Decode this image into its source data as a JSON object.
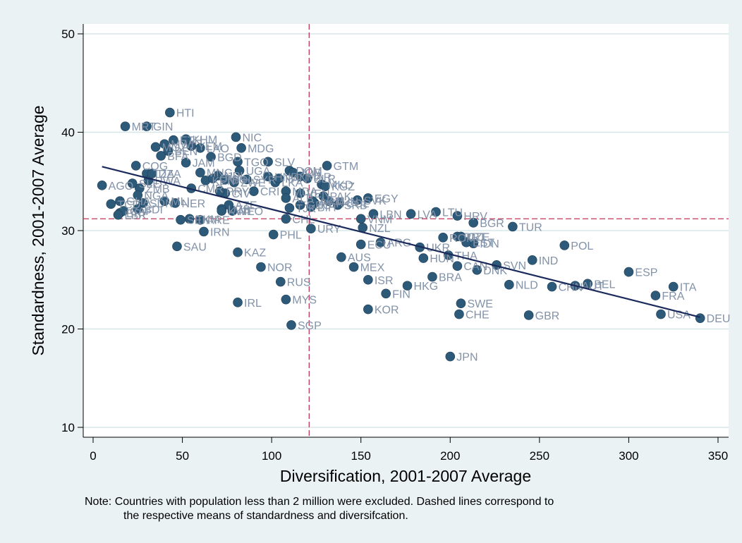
{
  "chart_data": {
    "type": "scatter",
    "title": "",
    "xlabel": "Diversification, 2001-2007 Average",
    "ylabel": "Standardness, 2001-2007 Average",
    "xlim": [
      0,
      350
    ],
    "ylim": [
      10,
      50
    ],
    "xticks": [
      0,
      50,
      100,
      150,
      200,
      250,
      300,
      350
    ],
    "yticks": [
      10,
      20,
      30,
      40,
      50
    ],
    "grid": "horizontal",
    "mean_lines": {
      "x": 121,
      "y": 31.2
    },
    "fit_line": {
      "x": [
        5,
        340
      ],
      "y": [
        36.5,
        21.2
      ]
    },
    "colors": {
      "marker": "#2e5a7a",
      "fit_line": "#1a2a5a",
      "mean_line": "#c0365a",
      "label": "#8292a8",
      "plot_bg": "#ffffff",
      "outer_bg": "#eaf2f3"
    },
    "points": [
      {
        "label": "HTI",
        "x": 43,
        "y": 42.0
      },
      {
        "label": "MRT",
        "x": 18,
        "y": 40.6
      },
      {
        "label": "GIN",
        "x": 30,
        "y": 40.6
      },
      {
        "label": "NIC",
        "x": 80,
        "y": 39.5
      },
      {
        "label": "KHM",
        "x": 52,
        "y": 39.3
      },
      {
        "label": "MDG",
        "x": 83,
        "y": 38.4
      },
      {
        "label": "LAO",
        "x": 60,
        "y": 38.4
      },
      {
        "label": "BEN",
        "x": 42,
        "y": 38.1
      },
      {
        "label": "BGD",
        "x": 66,
        "y": 37.5
      },
      {
        "label": "TGO",
        "x": 81,
        "y": 37.0
      },
      {
        "label": "SLV",
        "x": 98,
        "y": 37.0
      },
      {
        "label": "JAM",
        "x": 52,
        "y": 36.9
      },
      {
        "label": "COG",
        "x": 24,
        "y": 36.6
      },
      {
        "label": "GTM",
        "x": 131,
        "y": 36.6
      },
      {
        "label": "UGA",
        "x": 82,
        "y": 36.1
      },
      {
        "label": "DOM",
        "x": 110,
        "y": 36.1
      },
      {
        "label": "MNG",
        "x": 60,
        "y": 35.9
      },
      {
        "label": "BOL",
        "x": 74,
        "y": 35.2
      },
      {
        "label": "AGO",
        "x": 5,
        "y": 34.6
      },
      {
        "label": "MKD",
        "x": 128,
        "y": 34.7
      },
      {
        "label": "ZMB",
        "x": 26,
        "y": 34.3
      },
      {
        "label": "MDA",
        "x": 108,
        "y": 34.0
      },
      {
        "label": "PAK",
        "x": 129,
        "y": 33.5
      },
      {
        "label": "EGY",
        "x": 154,
        "y": 33.3
      },
      {
        "label": "NER",
        "x": 46,
        "y": 32.8
      },
      {
        "label": "COL",
        "x": 138,
        "y": 32.8
      },
      {
        "label": "CIV",
        "x": 74,
        "y": 33.8
      },
      {
        "label": "LBN",
        "x": 157,
        "y": 31.7
      },
      {
        "label": "LVA",
        "x": 178,
        "y": 31.7
      },
      {
        "label": "LTU",
        "x": 192,
        "y": 31.9
      },
      {
        "label": "HRV",
        "x": 204,
        "y": 31.5
      },
      {
        "label": "BGR",
        "x": 213,
        "y": 30.8
      },
      {
        "label": "TUR",
        "x": 235,
        "y": 30.4
      },
      {
        "label": "ERI",
        "x": 15,
        "y": 31.8
      },
      {
        "label": "SEN",
        "x": 49,
        "y": 31.1
      },
      {
        "label": "ARE",
        "x": 60,
        "y": 31.1
      },
      {
        "label": "NEO",
        "x": 78,
        "y": 32.0
      },
      {
        "label": "CHL",
        "x": 108,
        "y": 31.2
      },
      {
        "label": "URY",
        "x": 122,
        "y": 30.2
      },
      {
        "label": "IRN",
        "x": 62,
        "y": 29.9
      },
      {
        "label": "PHL",
        "x": 101,
        "y": 29.6
      },
      {
        "label": "VNM",
        "x": 150,
        "y": 31.2
      },
      {
        "label": "NZL",
        "x": 151,
        "y": 30.3
      },
      {
        "label": "ARG",
        "x": 161,
        "y": 28.8
      },
      {
        "label": "ECU",
        "x": 150,
        "y": 28.6
      },
      {
        "label": "UKR",
        "x": 183,
        "y": 28.3
      },
      {
        "label": "PRT",
        "x": 204,
        "y": 29.4
      },
      {
        "label": "ROM",
        "x": 196,
        "y": 29.3
      },
      {
        "label": "IDN",
        "x": 213,
        "y": 28.7
      },
      {
        "label": "POL",
        "x": 264,
        "y": 28.5
      },
      {
        "label": "THA",
        "x": 199,
        "y": 27.5
      },
      {
        "label": "HUN",
        "x": 185,
        "y": 27.2
      },
      {
        "label": "SAU",
        "x": 47,
        "y": 28.4
      },
      {
        "label": "KAZ",
        "x": 81,
        "y": 27.8
      },
      {
        "label": "AUS",
        "x": 139,
        "y": 27.3
      },
      {
        "label": "IND",
        "x": 246,
        "y": 27.0
      },
      {
        "label": "SVN",
        "x": 226,
        "y": 26.5
      },
      {
        "label": "CAN",
        "x": 204,
        "y": 26.4
      },
      {
        "label": "DNK",
        "x": 215,
        "y": 26.0
      },
      {
        "label": "MEX",
        "x": 146,
        "y": 26.3
      },
      {
        "label": "NOR",
        "x": 94,
        "y": 26.3
      },
      {
        "label": "ESP",
        "x": 300,
        "y": 25.8
      },
      {
        "label": "BRA",
        "x": 190,
        "y": 25.3
      },
      {
        "label": "ISR",
        "x": 154,
        "y": 25.0
      },
      {
        "label": "RUS",
        "x": 105,
        "y": 24.8
      },
      {
        "label": "HKG",
        "x": 176,
        "y": 24.4
      },
      {
        "label": "NLD",
        "x": 233,
        "y": 24.5
      },
      {
        "label": "BEL",
        "x": 277,
        "y": 24.6
      },
      {
        "label": "CHN",
        "x": 257,
        "y": 24.3
      },
      {
        "label": "AUT",
        "x": 270,
        "y": 24.4
      },
      {
        "label": "ITA",
        "x": 325,
        "y": 24.3
      },
      {
        "label": "FRA",
        "x": 315,
        "y": 23.4
      },
      {
        "label": "FIN",
        "x": 164,
        "y": 23.6
      },
      {
        "label": "MYS",
        "x": 108,
        "y": 23.0
      },
      {
        "label": "IRL",
        "x": 81,
        "y": 22.7
      },
      {
        "label": "SWE",
        "x": 206,
        "y": 22.6
      },
      {
        "label": "KOR",
        "x": 154,
        "y": 22.0
      },
      {
        "label": "CHE",
        "x": 205,
        "y": 21.5
      },
      {
        "label": "GBR",
        "x": 244,
        "y": 21.4
      },
      {
        "label": "USA",
        "x": 318,
        "y": 21.5
      },
      {
        "label": "DEU",
        "x": 340,
        "y": 21.1
      },
      {
        "label": "SGP",
        "x": 111,
        "y": 20.4
      },
      {
        "label": "JPN",
        "x": 200,
        "y": 17.2
      },
      {
        "label": "GHA",
        "x": 15,
        "y": 33.0
      },
      {
        "label": "TZA",
        "x": 30,
        "y": 35.8
      },
      {
        "label": "MLI",
        "x": 40,
        "y": 33.0
      },
      {
        "label": "SDN",
        "x": 28,
        "y": 32.8
      },
      {
        "label": "TCD",
        "x": 10,
        "y": 32.7
      },
      {
        "label": "CMR",
        "x": 55,
        "y": 34.3
      },
      {
        "label": "KEN",
        "x": 63,
        "y": 35.1
      },
      {
        "label": "PRY",
        "x": 71,
        "y": 34.0
      },
      {
        "label": "HND",
        "x": 98,
        "y": 35.5
      },
      {
        "label": "VEN",
        "x": 116,
        "y": 33.8
      },
      {
        "label": "GEO",
        "x": 116,
        "y": 32.6
      },
      {
        "label": "PER",
        "x": 124,
        "y": 32.8
      },
      {
        "label": "TUN",
        "x": 132,
        "y": 33.0
      },
      {
        "label": "CRI",
        "x": 90,
        "y": 34.0
      },
      {
        "label": "BLR",
        "x": 120,
        "y": 35.3
      },
      {
        "label": "SYR",
        "x": 86,
        "y": 35.2
      },
      {
        "label": "MOZ",
        "x": 35,
        "y": 38.5
      },
      {
        "label": "MWI",
        "x": 40,
        "y": 38.8
      },
      {
        "label": "ETH",
        "x": 45,
        "y": 39.2
      },
      {
        "label": "YEM",
        "x": 55,
        "y": 38.6
      },
      {
        "label": "BFA",
        "x": 38,
        "y": 37.6
      },
      {
        "label": "NPL",
        "x": 70,
        "y": 35.6
      },
      {
        "label": "ZWE",
        "x": 79,
        "y": 34.9
      },
      {
        "label": "LKA",
        "x": 102,
        "y": 34.9
      },
      {
        "label": "PAN",
        "x": 104,
        "y": 35.3
      },
      {
        "label": "JOR",
        "x": 112,
        "y": 35.9
      },
      {
        "label": "MAR",
        "x": 116,
        "y": 35.5
      },
      {
        "label": "ALB",
        "x": 108,
        "y": 33.3
      },
      {
        "label": "ARM",
        "x": 123,
        "y": 33.0
      },
      {
        "label": "KGZ",
        "x": 130,
        "y": 34.5
      },
      {
        "label": "TJK",
        "x": 110,
        "y": 32.3
      },
      {
        "label": "AZE",
        "x": 76,
        "y": 32.6
      },
      {
        "label": "UZB",
        "x": 72,
        "y": 32.2
      },
      {
        "label": "TKM",
        "x": 54,
        "y": 31.2
      },
      {
        "label": "SLE",
        "x": 22,
        "y": 34.8
      },
      {
        "label": "RWA",
        "x": 31,
        "y": 35.1
      },
      {
        "label": "BDI",
        "x": 25,
        "y": 32.2
      },
      {
        "label": "CAF",
        "x": 17,
        "y": 32.0
      },
      {
        "label": "LBR",
        "x": 14,
        "y": 31.6
      },
      {
        "label": "NGA",
        "x": 25,
        "y": 33.6
      },
      {
        "label": "DZA",
        "x": 33,
        "y": 35.8
      },
      {
        "label": "OMN",
        "x": 67,
        "y": 35.3
      },
      {
        "label": "KWT",
        "x": 72,
        "y": 32.0
      },
      {
        "label": "SRB",
        "x": 137,
        "y": 32.6
      },
      {
        "label": "BIH",
        "x": 122,
        "y": 32.4
      },
      {
        "label": "SVK",
        "x": 148,
        "y": 33.1
      },
      {
        "label": "CZE",
        "x": 206,
        "y": 29.4
      },
      {
        "label": "EST",
        "x": 209,
        "y": 28.8
      }
    ]
  },
  "note": {
    "line1": "Note: Countries with population less than 2 million were excluded. Dashed lines correspond to",
    "line2": "the respective means of standardness and diversifcation."
  }
}
